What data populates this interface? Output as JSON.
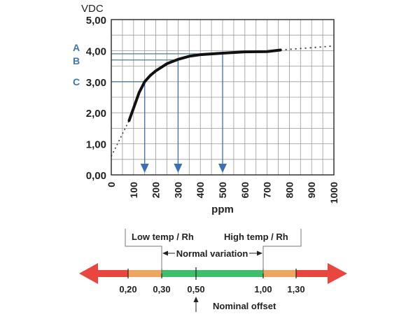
{
  "chart_data": {
    "type": "line",
    "ylabel": "VDC",
    "xlabel": "ppm",
    "xlim": [
      0,
      1000
    ],
    "ylim": [
      0,
      5
    ],
    "x_ticks": [
      "0",
      "100",
      "200",
      "300",
      "400",
      "500",
      "600",
      "700",
      "800",
      "900",
      "1000"
    ],
    "y_ticks": [
      "0,00",
      "1,00",
      "2,00",
      "3,00",
      "4,00",
      "5,00"
    ],
    "grid": true,
    "curve_solid": [
      [
        80,
        1.75
      ],
      [
        100,
        2.15
      ],
      [
        125,
        2.65
      ],
      [
        150,
        3.0
      ],
      [
        175,
        3.2
      ],
      [
        200,
        3.35
      ],
      [
        250,
        3.58
      ],
      [
        300,
        3.72
      ],
      [
        350,
        3.82
      ],
      [
        400,
        3.87
      ],
      [
        500,
        3.92
      ],
      [
        600,
        3.96
      ],
      [
        700,
        3.97
      ],
      [
        760,
        4.02
      ]
    ],
    "curve_dotted_low": [
      [
        0,
        0.6
      ],
      [
        80,
        1.75
      ]
    ],
    "curve_dotted_high": [
      [
        760,
        4.02
      ],
      [
        1000,
        4.15
      ]
    ],
    "markers": [
      {
        "label": "A",
        "y": 3.9,
        "x": 500
      },
      {
        "label": "B",
        "y": 3.7,
        "x": 300
      },
      {
        "label": "C",
        "y": 3.0,
        "x": 150
      }
    ],
    "colors": {
      "curve": "#111111",
      "marker_line": "#4a7f8c",
      "arrow": "#3b6fb6",
      "label": "#3b78b0",
      "grid": "#9a9a9a"
    }
  },
  "scale": {
    "ticks": [
      {
        "value": 0.2,
        "label": "0,20"
      },
      {
        "value": 0.3,
        "label": "0,30"
      },
      {
        "value": 0.5,
        "label": "0,50"
      },
      {
        "value": 1.0,
        "label": "1,00"
      },
      {
        "value": 1.3,
        "label": "1,30"
      }
    ],
    "low_label": "Low temp / Rh",
    "high_label": "High temp / Rh",
    "normal_label": "Normal variation",
    "nominal_label": "Nominal offset",
    "colors": {
      "red": "#e8463e",
      "orange": "#eea55f",
      "green": "#3fbd6b"
    }
  }
}
